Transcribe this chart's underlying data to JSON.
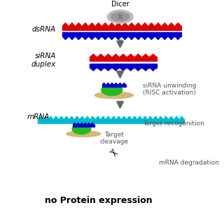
{
  "background_color": "#ffffff",
  "dsRNA_label": "dsRNA",
  "siRNA_label": "siRNA\nduplex",
  "mRNA_label": "mRNA",
  "dicer_label": "Dicer",
  "step1_text": "siRNA unwinding\n(RISC activation)",
  "step2_text": "Target recogenition",
  "step3_text": "Target\ncleavage",
  "step4_text": "mRNA degradation",
  "final_text": "no Protein expression",
  "red_color": "#dd0000",
  "blue_color": "#0000cc",
  "teal_color": "#00bbcc",
  "green_color": "#22bb22",
  "tan_color": "#d4b87a",
  "gray_color": "#999999",
  "purple_color": "#9933aa",
  "text_color": "#555555"
}
